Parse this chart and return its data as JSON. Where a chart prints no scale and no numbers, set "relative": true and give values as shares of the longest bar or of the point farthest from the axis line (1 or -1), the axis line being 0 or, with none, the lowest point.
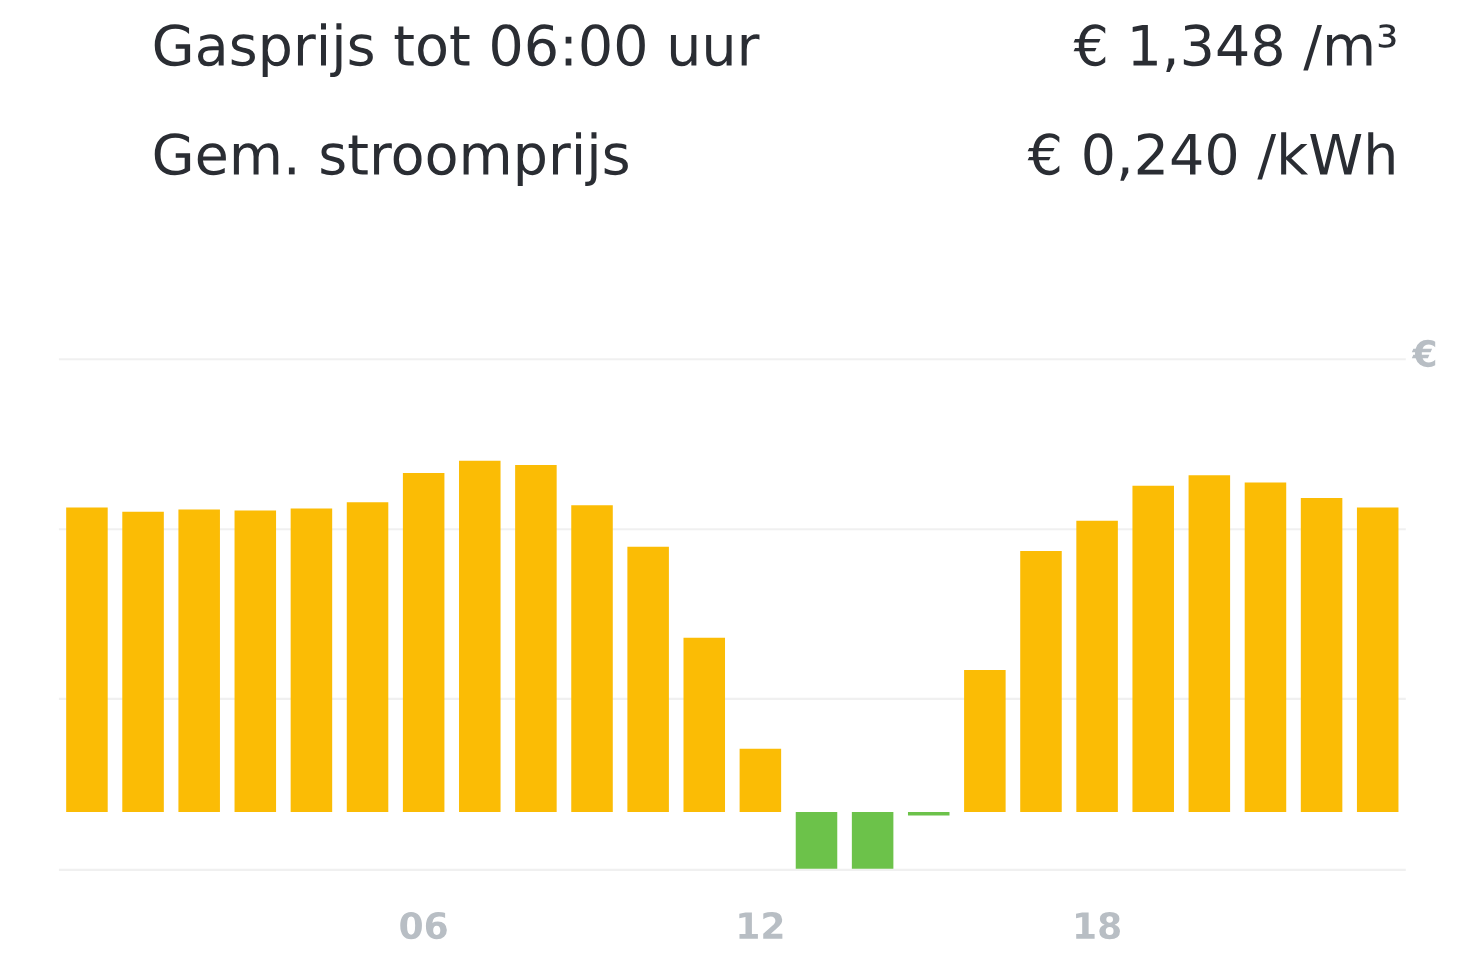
{
  "chart_data": {
    "type": "bar",
    "relative": true,
    "ylabel": "€",
    "annotations": [
      "Gasprijs tot 06:00 uur",
      "€ 1,348 /m³",
      "Gem. stroomprijs",
      "€ 0,240 /kWh"
    ],
    "categories": [
      null,
      null,
      null,
      null,
      null,
      null,
      "06",
      null,
      null,
      null,
      null,
      null,
      "12",
      null,
      null,
      null,
      null,
      null,
      "18",
      null,
      null,
      null,
      null,
      null
    ],
    "values": [
      0.867,
      0.855,
      0.861,
      0.858,
      0.864,
      0.882,
      0.965,
      1.0,
      0.988,
      0.873,
      0.755,
      0.496,
      0.18,
      -0.162,
      -0.162,
      -0.01,
      0.404,
      0.743,
      0.829,
      0.929,
      0.959,
      0.938,
      0.894,
      0.867
    ],
    "colors": [
      "#fbbc05",
      "#fbbc05",
      "#fbbc05",
      "#fbbc05",
      "#fbbc05",
      "#fbbc05",
      "#fbbc05",
      "#fbbc05",
      "#fbbc05",
      "#fbbc05",
      "#fbbc05",
      "#fbbc05",
      "#fbbc05",
      "#6cc24a",
      "#6cc24a",
      "#6cc24a",
      "#fbbc05",
      "#fbbc05",
      "#fbbc05",
      "#fbbc05",
      "#fbbc05",
      "#fbbc05",
      "#fbbc05",
      "#fbbc05"
    ],
    "ref_lines": [
      {
        "axis": "y",
        "value": 1.289,
        "color": "#f0f0f0"
      },
      {
        "axis": "y",
        "value": 0.805,
        "color": "#f0f0f0"
      },
      {
        "axis": "y",
        "value": 0.322,
        "color": "#f0f0f0"
      },
      {
        "axis": "y",
        "value": -0.165,
        "color": "#f0f0f0"
      }
    ],
    "grid": false,
    "legend": false
  }
}
